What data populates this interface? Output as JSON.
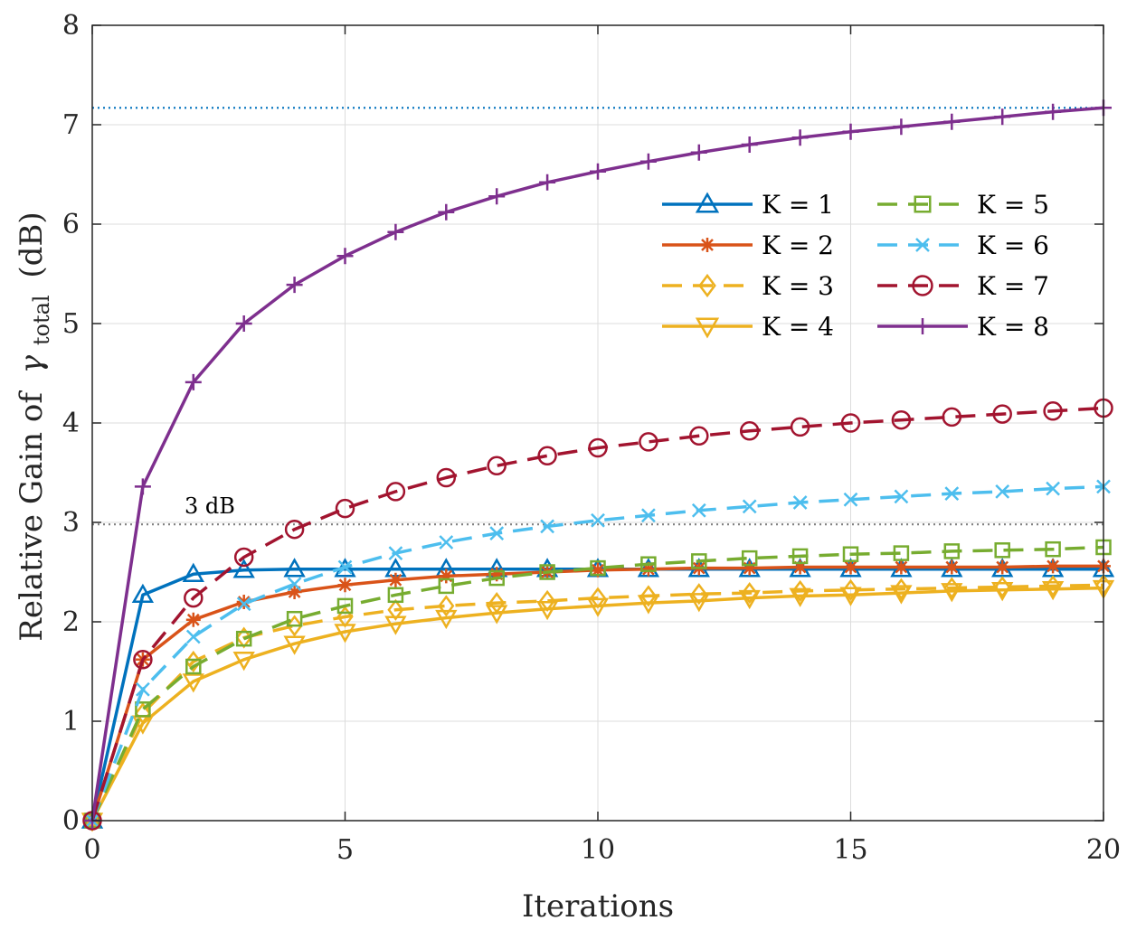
{
  "chart_data": {
    "type": "line",
    "title": "",
    "xlabel": "Iterations",
    "ylabel": "Relative Gain of",
    "ylabel_symbol": "γ",
    "ylabel_subscript": "total",
    "ylabel_unit": "(dB)",
    "xlim": [
      0,
      20
    ],
    "ylim": [
      0,
      8
    ],
    "xticks": [
      0,
      5,
      10,
      15,
      20
    ],
    "yticks": [
      0,
      1,
      2,
      3,
      4,
      5,
      6,
      7,
      8
    ],
    "grid": true,
    "legend_position": "upper-right",
    "x": [
      0,
      1,
      2,
      3,
      4,
      5,
      6,
      7,
      8,
      9,
      10,
      11,
      12,
      13,
      14,
      15,
      16,
      17,
      18,
      19,
      20
    ],
    "reference_lines": [
      {
        "y": 7.17,
        "color": "#0072BD",
        "style": "dotted",
        "label": ""
      },
      {
        "y": 2.98,
        "color": "#808080",
        "style": "dotted",
        "label": "3 dB"
      }
    ],
    "series": [
      {
        "name": "K = 1",
        "color": "#0072BD",
        "dash": "solid",
        "marker": "triangle-up",
        "values": [
          0,
          2.27,
          2.48,
          2.52,
          2.53,
          2.53,
          2.53,
          2.53,
          2.53,
          2.53,
          2.53,
          2.53,
          2.53,
          2.53,
          2.53,
          2.53,
          2.53,
          2.53,
          2.53,
          2.53,
          2.53
        ]
      },
      {
        "name": "K = 2",
        "color": "#D95319",
        "dash": "solid",
        "marker": "asterisk",
        "values": [
          0,
          1.62,
          2.02,
          2.2,
          2.3,
          2.37,
          2.42,
          2.46,
          2.48,
          2.5,
          2.52,
          2.53,
          2.54,
          2.54,
          2.55,
          2.55,
          2.55,
          2.55,
          2.55,
          2.56,
          2.56
        ]
      },
      {
        "name": "K = 3",
        "color": "#EDB120",
        "dash": "dashed",
        "marker": "diamond",
        "values": [
          0,
          1.08,
          1.6,
          1.84,
          1.96,
          2.05,
          2.12,
          2.16,
          2.19,
          2.21,
          2.24,
          2.26,
          2.28,
          2.29,
          2.31,
          2.32,
          2.33,
          2.34,
          2.35,
          2.36,
          2.37
        ]
      },
      {
        "name": "K = 4",
        "color": "#EDB120",
        "dash": "solid",
        "marker": "triangle-down",
        "values": [
          0,
          0.98,
          1.4,
          1.62,
          1.78,
          1.9,
          1.98,
          2.04,
          2.09,
          2.13,
          2.16,
          2.19,
          2.21,
          2.24,
          2.26,
          2.27,
          2.29,
          2.31,
          2.32,
          2.33,
          2.34
        ]
      },
      {
        "name": "K = 5",
        "color": "#77AC30",
        "dash": "dashed",
        "marker": "square",
        "values": [
          0,
          1.12,
          1.55,
          1.83,
          2.03,
          2.16,
          2.27,
          2.36,
          2.44,
          2.5,
          2.54,
          2.58,
          2.61,
          2.64,
          2.66,
          2.68,
          2.69,
          2.71,
          2.72,
          2.73,
          2.75
        ]
      },
      {
        "name": "K = 6",
        "color": "#4DBEEE",
        "dash": "dashed",
        "marker": "cross",
        "values": [
          0,
          1.32,
          1.85,
          2.18,
          2.38,
          2.55,
          2.69,
          2.8,
          2.89,
          2.96,
          3.02,
          3.07,
          3.12,
          3.16,
          3.2,
          3.23,
          3.26,
          3.29,
          3.31,
          3.34,
          3.36
        ]
      },
      {
        "name": "K = 7",
        "color": "#A2142F",
        "dash": "dashed",
        "marker": "circle",
        "values": [
          0,
          1.62,
          2.24,
          2.65,
          2.93,
          3.14,
          3.31,
          3.45,
          3.57,
          3.67,
          3.75,
          3.81,
          3.87,
          3.92,
          3.96,
          4.0,
          4.03,
          4.06,
          4.09,
          4.12,
          4.15
        ]
      },
      {
        "name": "K = 8",
        "color": "#7E2F8E",
        "dash": "solid",
        "marker": "plus",
        "values": [
          0,
          3.36,
          4.41,
          5.0,
          5.39,
          5.68,
          5.92,
          6.12,
          6.28,
          6.42,
          6.53,
          6.63,
          6.72,
          6.8,
          6.87,
          6.93,
          6.98,
          7.03,
          7.08,
          7.13,
          7.17
        ]
      }
    ]
  }
}
